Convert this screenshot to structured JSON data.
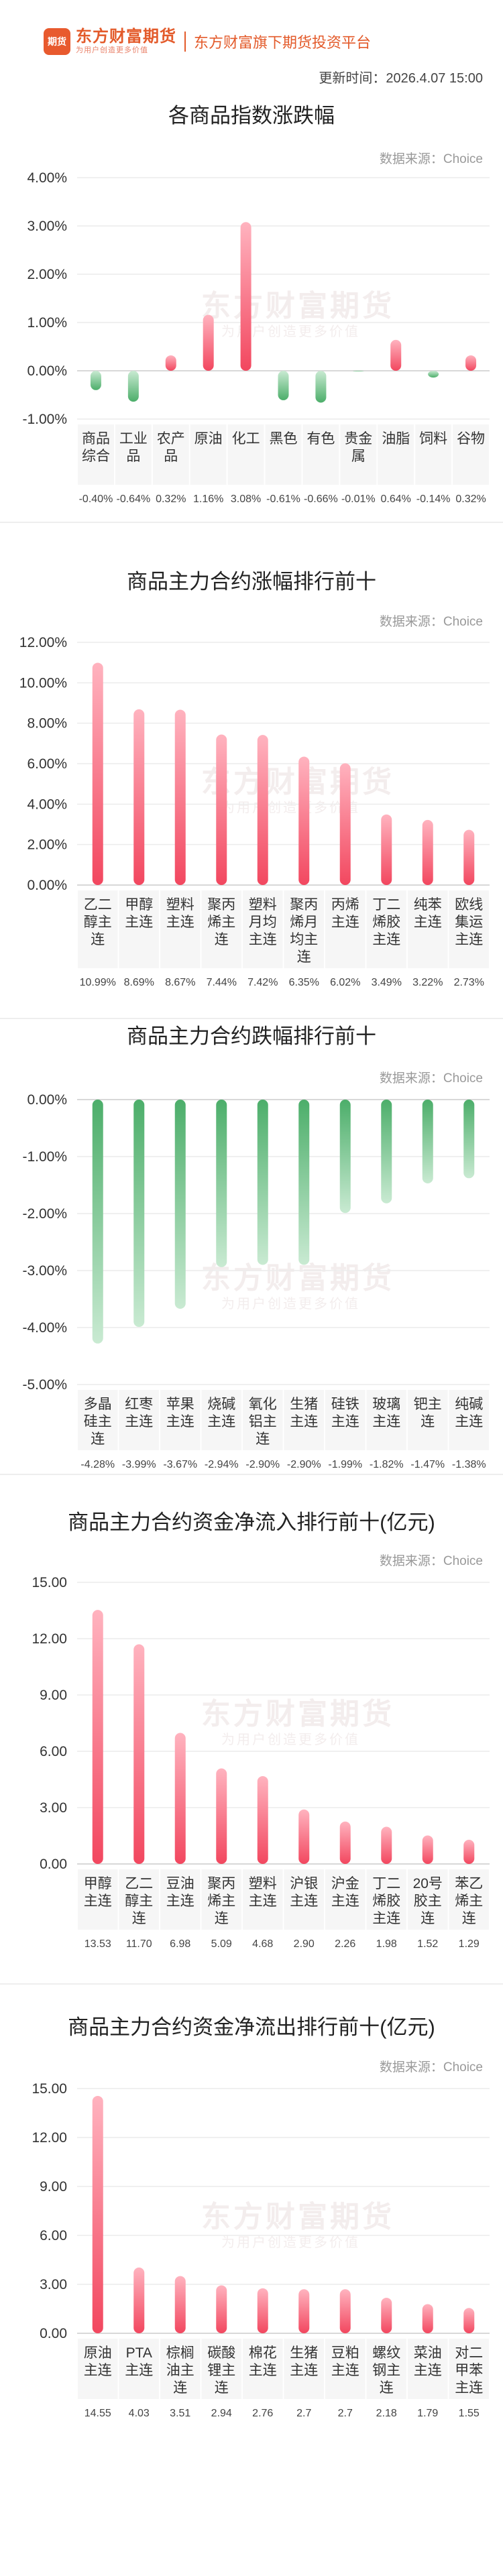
{
  "header": {
    "logo_mark": "期货",
    "brand_name": "东方财富期货",
    "brand_slogan": "为用户创造更多价值",
    "platform": "东方财富旗下期货投资平台",
    "update_time": "更新时间：2026.4.07 15:00"
  },
  "source_label": "数据来源：Choice",
  "watermark": {
    "main": "东方财富期货",
    "sub": "为用户创造更多价值"
  },
  "charts": [
    {
      "title": "各商品指数涨跌幅",
      "chart_data": {
        "type": "bar",
        "categories": [
          "商品综合",
          "工业品",
          "农产品",
          "原油",
          "化工",
          "黑色",
          "有色",
          "贵金属",
          "油脂",
          "饲料",
          "谷物"
        ],
        "values": [
          -0.4,
          -0.64,
          0.32,
          1.16,
          3.08,
          -0.61,
          -0.66,
          -0.01,
          0.64,
          -0.14,
          0.32
        ],
        "value_labels": [
          "-0.40%",
          "-0.64%",
          "0.32%",
          "1.16%",
          "3.08%",
          "-0.61%",
          "-0.66%",
          "-0.01%",
          "0.64%",
          "-0.14%",
          "0.32%"
        ],
        "yticks": [
          "4.00%",
          "3.00%",
          "2.00%",
          "1.00%",
          "0.00%",
          "-1.00%"
        ],
        "ylim": [
          -1,
          4
        ],
        "unit": "%"
      }
    },
    {
      "title": "商品主力合约涨幅排行前十",
      "chart_data": {
        "type": "bar",
        "categories": [
          "乙二醇主连",
          "甲醇主连",
          "塑料主连",
          "聚丙烯主连",
          "塑料月均主连",
          "聚丙烯月均主连",
          "丙烯主连",
          "丁二烯胶主连",
          "纯苯主连",
          "欧线集运主连"
        ],
        "values": [
          10.99,
          8.69,
          8.67,
          7.44,
          7.42,
          6.35,
          6.02,
          3.49,
          3.22,
          2.73
        ],
        "value_labels": [
          "10.99%",
          "8.69%",
          "8.67%",
          "7.44%",
          "7.42%",
          "6.35%",
          "6.02%",
          "3.49%",
          "3.22%",
          "2.73%"
        ],
        "yticks": [
          "12.00%",
          "10.00%",
          "8.00%",
          "6.00%",
          "4.00%",
          "2.00%",
          "0.00%"
        ],
        "ylim": [
          0,
          12
        ],
        "unit": "%"
      }
    },
    {
      "title": "商品主力合约跌幅排行前十",
      "chart_data": {
        "type": "bar",
        "categories": [
          "多晶硅主连",
          "红枣主连",
          "苹果主连",
          "烧碱主连",
          "氧化铝主连",
          "生猪主连",
          "硅铁主连",
          "玻璃主连",
          "钯主连",
          "纯碱主连"
        ],
        "values": [
          -4.28,
          -3.99,
          -3.67,
          -2.94,
          -2.9,
          -2.9,
          -1.99,
          -1.82,
          -1.47,
          -1.38
        ],
        "value_labels": [
          "-4.28%",
          "-3.99%",
          "-3.67%",
          "-2.94%",
          "-2.90%",
          "-2.90%",
          "-1.99%",
          "-1.82%",
          "-1.47%",
          "-1.38%"
        ],
        "yticks": [
          "0.00%",
          "-1.00%",
          "-2.00%",
          "-3.00%",
          "-4.00%",
          "-5.00%"
        ],
        "ylim": [
          -5,
          0
        ],
        "unit": "%"
      }
    },
    {
      "title": "商品主力合约资金净流入排行前十(亿元)",
      "chart_data": {
        "type": "bar",
        "categories": [
          "甲醇主连",
          "乙二醇主连",
          "豆油主连",
          "聚丙烯主连",
          "塑料主连",
          "沪银主连",
          "沪金主连",
          "丁二烯胶主连",
          "20号胶主连",
          "苯乙烯主连"
        ],
        "values": [
          13.53,
          11.7,
          6.98,
          5.09,
          4.68,
          2.9,
          2.26,
          1.98,
          1.52,
          1.29
        ],
        "value_labels": [
          "13.53",
          "11.70",
          "6.98",
          "5.09",
          "4.68",
          "2.90",
          "2.26",
          "1.98",
          "1.52",
          "1.29"
        ],
        "yticks": [
          "15.00",
          "12.00",
          "9.00",
          "6.00",
          "3.00",
          "0.00"
        ],
        "ylim": [
          0,
          15
        ],
        "unit": "亿元"
      }
    },
    {
      "title": "商品主力合约资金净流出排行前十(亿元)",
      "chart_data": {
        "type": "bar",
        "categories": [
          "原油主连",
          "PTA主连",
          "棕榈油主连",
          "碳酸锂主连",
          "棉花主连",
          "生猪主连",
          "豆粕主连",
          "螺纹钢主连",
          "菜油主连",
          "对二甲苯主连"
        ],
        "values": [
          14.55,
          4.03,
          3.51,
          2.94,
          2.76,
          2.7,
          2.7,
          2.18,
          1.79,
          1.55
        ],
        "value_labels": [
          "14.55",
          "4.03",
          "3.51",
          "2.94",
          "2.76",
          "2.7",
          "2.7",
          "2.18",
          "1.79",
          "1.55"
        ],
        "yticks": [
          "15.00",
          "12.00",
          "9.00",
          "6.00",
          "3.00",
          "0.00"
        ],
        "ylim": [
          0,
          15
        ],
        "unit": "亿元"
      }
    }
  ]
}
